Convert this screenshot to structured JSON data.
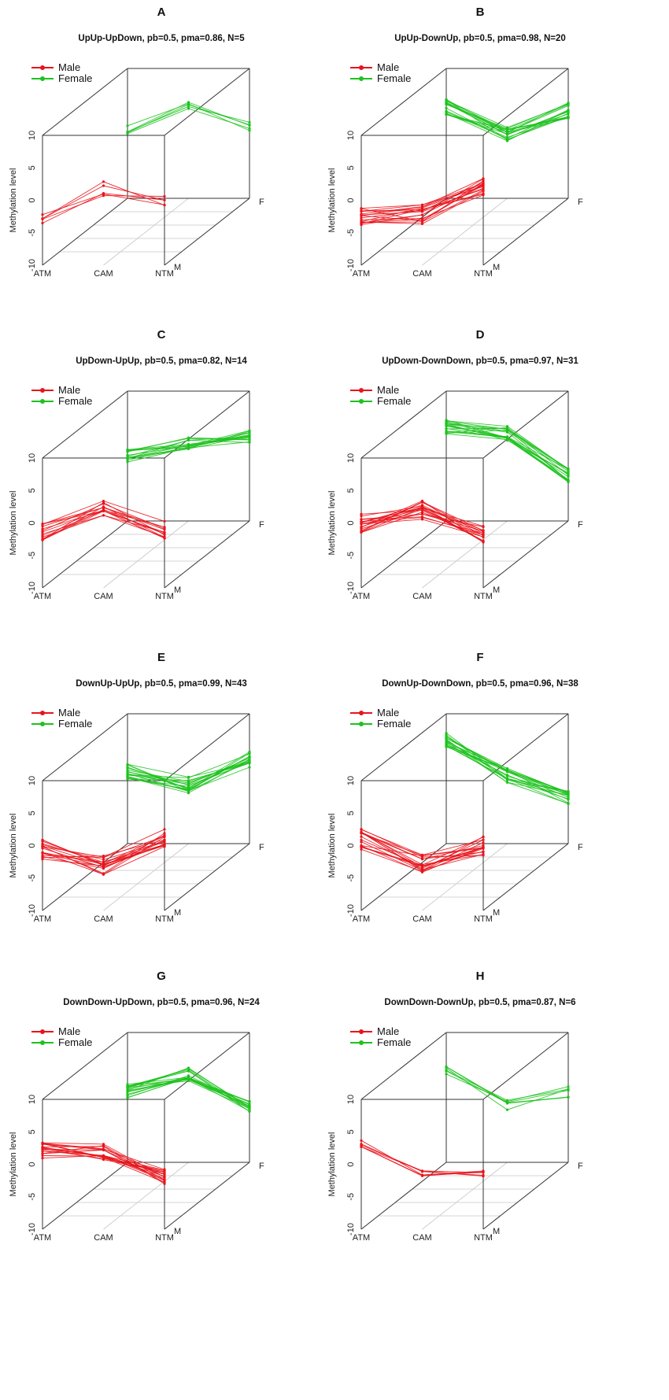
{
  "colors": {
    "male": "#e8141c",
    "female": "#1ec21e",
    "box": "#333333",
    "grid": "#c8c8c8"
  },
  "legend": {
    "male_label": "Male",
    "female_label": "Female"
  },
  "axes": {
    "ylabel": "Methylation level",
    "x_ticks": [
      "ATM",
      "CAM",
      "NTM"
    ],
    "y_ticks": [
      "10",
      "5",
      "0",
      "-5",
      "-10"
    ],
    "y_tick_values": [
      10,
      5,
      0,
      -5,
      -10
    ],
    "depth_ticks": [
      "M",
      "F"
    ],
    "ylim": [
      -10,
      10
    ]
  },
  "chart_data": [
    {
      "panel": "A",
      "type": "line",
      "title": "UpUp-UpDown, pb=0.5, pma=0.86, N=5",
      "categories": [
        "ATM",
        "CAM",
        "NTM"
      ],
      "male_mean": [
        -3,
        1.8,
        0
      ],
      "male_spread": 2.2,
      "female_mean": [
        0.5,
        4.5,
        1
      ],
      "female_spread": 1.5,
      "n_lines": 5
    },
    {
      "panel": "B",
      "type": "line",
      "title": "UpUp-DownUp, pb=0.5, pma=0.98, N=20",
      "categories": [
        "ATM",
        "CAM",
        "NTM"
      ],
      "male_mean": [
        -2.5,
        -2.2,
        2
      ],
      "male_spread": 3,
      "female_mean": [
        4,
        0,
        3.5
      ],
      "female_spread": 2.5,
      "n_lines": 20
    },
    {
      "panel": "C",
      "type": "line",
      "title": "UpDown-UpUp, pb=0.5, pma=0.82, N=14",
      "categories": [
        "ATM",
        "CAM",
        "NTM"
      ],
      "male_mean": [
        -1.5,
        2.5,
        -1
      ],
      "male_spread": 2.8,
      "female_mean": [
        0,
        2,
        3
      ],
      "female_spread": 2,
      "n_lines": 14
    },
    {
      "panel": "D",
      "type": "line",
      "title": "UpDown-DownDown, pb=0.5, pma=0.97, N=31",
      "categories": [
        "ATM",
        "CAM",
        "NTM"
      ],
      "male_mean": [
        0,
        2,
        -1.5
      ],
      "male_spread": 3,
      "female_mean": [
        4.5,
        3.5,
        -3
      ],
      "female_spread": 2.2,
      "n_lines": 31
    },
    {
      "panel": "E",
      "type": "line",
      "title": "DownUp-UpUp, pb=0.5, pma=0.99, N=43",
      "categories": [
        "ATM",
        "CAM",
        "NTM"
      ],
      "male_mean": [
        -0.5,
        -3,
        1
      ],
      "male_spread": 3.2,
      "female_mean": [
        1,
        -1,
        3
      ],
      "female_spread": 2.5,
      "n_lines": 43
    },
    {
      "panel": "F",
      "type": "line",
      "title": "DownUp-DownDown, pb=0.5, pma=0.96, N=38",
      "categories": [
        "ATM",
        "CAM",
        "NTM"
      ],
      "male_mean": [
        1,
        -2.5,
        0
      ],
      "male_spread": 3.2,
      "female_mean": [
        6,
        0.5,
        -3
      ],
      "female_spread": 2.2,
      "n_lines": 38
    },
    {
      "panel": "G",
      "type": "line",
      "title": "DownDown-UpDown, pb=0.5, pma=0.96, N=24",
      "categories": [
        "ATM",
        "CAM",
        "NTM"
      ],
      "male_mean": [
        2,
        2,
        -2
      ],
      "male_spread": 2.8,
      "female_mean": [
        1,
        3.5,
        -1.5
      ],
      "female_spread": 2.2,
      "n_lines": 24
    },
    {
      "panel": "H",
      "type": "line",
      "title": "DownDown-DownUp, pb=0.5, pma=0.87, N=6",
      "categories": [
        "ATM",
        "CAM",
        "NTM"
      ],
      "male_mean": [
        3.2,
        -1.5,
        -1.5
      ],
      "male_spread": 1,
      "female_mean": [
        4.5,
        -1,
        1
      ],
      "female_spread": 2,
      "n_lines": 6
    }
  ]
}
